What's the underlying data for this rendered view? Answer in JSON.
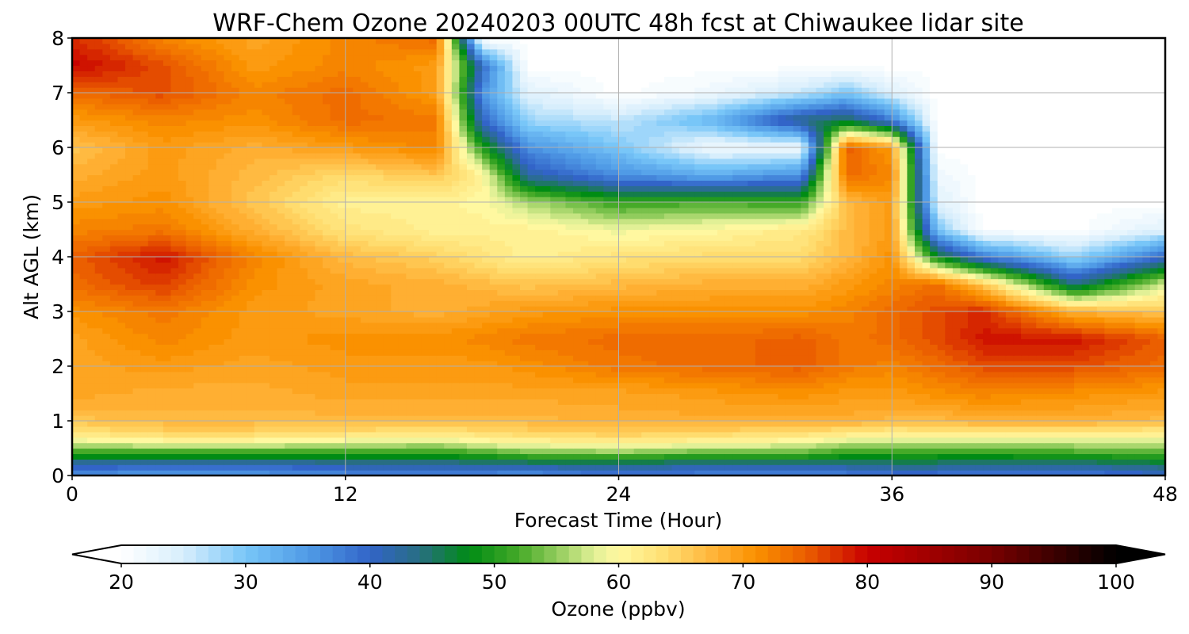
{
  "chart_data": {
    "type": "heatmap",
    "title": "WRF-Chem Ozone  20240203 00UTC 48h fcst at Chiwaukee lidar site",
    "xlabel": "Forecast Time (Hour)",
    "ylabel": "Alt AGL (km)",
    "xlim": [
      0,
      48
    ],
    "ylim": [
      0,
      8
    ],
    "x_ticks": [
      "0",
      "12",
      "24",
      "36",
      "48"
    ],
    "y_ticks": [
      "0",
      "1",
      "2",
      "3",
      "4",
      "5",
      "6",
      "7",
      "8"
    ],
    "grid": true,
    "colorbar": {
      "label": "Ozone  (ppbv)",
      "min": 20,
      "max": 100,
      "step": 1,
      "extend": "both",
      "ticks": [
        "20",
        "30",
        "40",
        "50",
        "60",
        "70",
        "80",
        "90",
        "100"
      ]
    },
    "x": [
      0,
      4,
      8,
      12,
      16,
      18,
      20,
      24,
      28,
      32,
      34,
      36,
      38,
      40,
      44,
      48
    ],
    "y": [
      0,
      0.2,
      0.4,
      0.6,
      0.8,
      1,
      1.5,
      2,
      2.5,
      3,
      3.5,
      4,
      4.5,
      5,
      5.5,
      6,
      6.5,
      7,
      7.5,
      8
    ],
    "z": [
      [
        36,
        34,
        35,
        36,
        37,
        36,
        35,
        38,
        37,
        36,
        37,
        38,
        38,
        37,
        37,
        40
      ],
      [
        41,
        41,
        40,
        42,
        42,
        43,
        43,
        44,
        42,
        43,
        43,
        44,
        44,
        43,
        43,
        45
      ],
      [
        50,
        50,
        50,
        50,
        50,
        51,
        53,
        54,
        52,
        52,
        50,
        50,
        50,
        50,
        51,
        52
      ],
      [
        58,
        59,
        59,
        58,
        57,
        59,
        60,
        61,
        60,
        59,
        57,
        56,
        56,
        56,
        57,
        57
      ],
      [
        63,
        65,
        65,
        64,
        63,
        64,
        65,
        66,
        65,
        64,
        63,
        62,
        63,
        63,
        63,
        62
      ],
      [
        66,
        67,
        67,
        67,
        67,
        67,
        67,
        68,
        68,
        68,
        68,
        67,
        67,
        68,
        68,
        67
      ],
      [
        69,
        68,
        68,
        69,
        69,
        69,
        69,
        69,
        70,
        71,
        70,
        70,
        71,
        72,
        71,
        70
      ],
      [
        69,
        70,
        69,
        70,
        70,
        70,
        71,
        73,
        74,
        75,
        73,
        72,
        74,
        76,
        76,
        74
      ],
      [
        69,
        72,
        70,
        71,
        71,
        72,
        73,
        74,
        74,
        75,
        73,
        74,
        76,
        79,
        79,
        75
      ],
      [
        71,
        73,
        70,
        69,
        68,
        69,
        70,
        71,
        71,
        71,
        72,
        74,
        76,
        78,
        68,
        66
      ],
      [
        74,
        77,
        71,
        69,
        68,
        67,
        66,
        67,
        68,
        68,
        70,
        72,
        74,
        66,
        44,
        58
      ],
      [
        75,
        79,
        72,
        67,
        65,
        63,
        61,
        63,
        64,
        64,
        67,
        71,
        48,
        38,
        28,
        40
      ],
      [
        72,
        73,
        68,
        63,
        61,
        61,
        61,
        59,
        60,
        62,
        67,
        70,
        30,
        20,
        20,
        24
      ],
      [
        70,
        71,
        66,
        61,
        61,
        60,
        56,
        51,
        52,
        51,
        67,
        70,
        24,
        20,
        20,
        20
      ],
      [
        68,
        70,
        67,
        64,
        66,
        61,
        42,
        36,
        33,
        36,
        74,
        72,
        22,
        20,
        20,
        20
      ],
      [
        66,
        70,
        68,
        70,
        72,
        50,
        36,
        30,
        22,
        22,
        75,
        70,
        20,
        20,
        20,
        20
      ],
      [
        70,
        72,
        71,
        74,
        73,
        40,
        28,
        26,
        32,
        44,
        46,
        38,
        20,
        20,
        20,
        20
      ],
      [
        74,
        76,
        72,
        74,
        70,
        36,
        24,
        20,
        22,
        26,
        30,
        24,
        20,
        20,
        20,
        20
      ],
      [
        80,
        76,
        70,
        72,
        70,
        40,
        20,
        20,
        20,
        20,
        20,
        20,
        20,
        20,
        20,
        20
      ],
      [
        78,
        72,
        69,
        72,
        74,
        20,
        20,
        20,
        20,
        20,
        20,
        20,
        20,
        20,
        20,
        20
      ]
    ]
  }
}
